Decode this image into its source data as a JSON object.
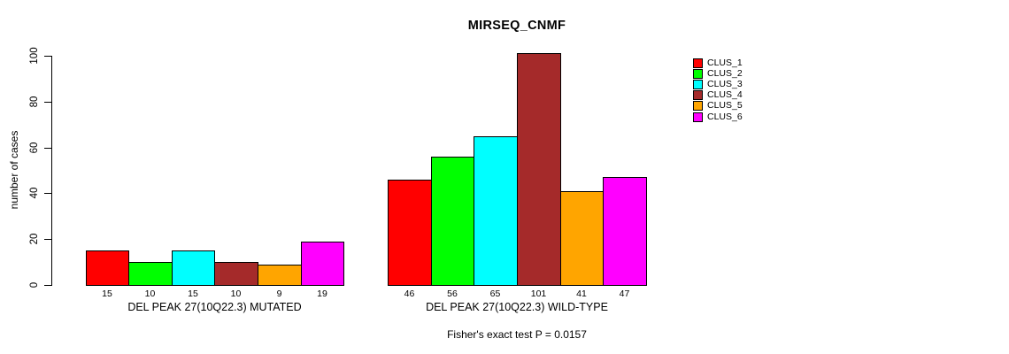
{
  "title": "MIRSEQ_CNMF",
  "y_axis": {
    "label": "number of cases",
    "ticks": [
      0,
      20,
      40,
      60,
      80,
      100
    ]
  },
  "legend": {
    "position": "right",
    "items": [
      {
        "label": "CLUS_1",
        "color": "#FF0000"
      },
      {
        "label": "CLUS_2",
        "color": "#00FF00"
      },
      {
        "label": "CLUS_3",
        "color": "#00FFFF"
      },
      {
        "label": "CLUS_4",
        "color": "#A52A2A"
      },
      {
        "label": "CLUS_5",
        "color": "#FFA500"
      },
      {
        "label": "CLUS_6",
        "color": "#FF00FF"
      }
    ]
  },
  "caption": "Fisher's exact test P = 0.0157",
  "chart_data": {
    "type": "bar",
    "title": "MIRSEQ_CNMF",
    "xlabel": "",
    "ylabel": "number of cases",
    "ylim": [
      0,
      100
    ],
    "yticks": [
      0,
      20,
      40,
      60,
      80,
      100
    ],
    "grid": false,
    "legend_position": "right",
    "series_labels": [
      "CLUS_1",
      "CLUS_2",
      "CLUS_3",
      "CLUS_4",
      "CLUS_5",
      "CLUS_6"
    ],
    "series_colors": [
      "#FF0000",
      "#00FF00",
      "#00FFFF",
      "#A52A2A",
      "#FFA500",
      "#FF00FF"
    ],
    "groups": [
      {
        "label": "DEL PEAK 27(10Q22.3) MUTATED",
        "values": [
          15,
          10,
          15,
          10,
          9,
          19
        ]
      },
      {
        "label": "DEL PEAK 27(10Q22.3) WILD-TYPE",
        "values": [
          46,
          56,
          65,
          101,
          41,
          47
        ]
      }
    ],
    "annotation": "Fisher's exact test P = 0.0157"
  }
}
